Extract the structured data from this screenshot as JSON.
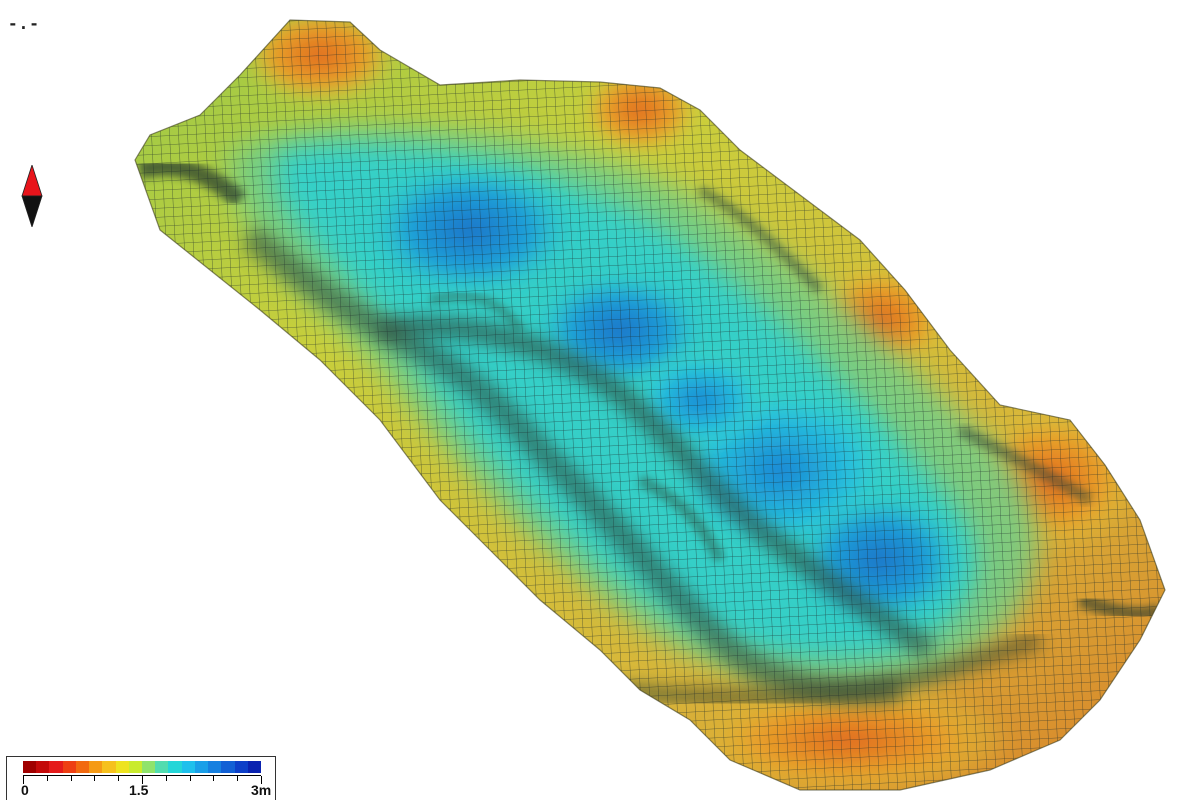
{
  "view": {
    "label": "-.-"
  },
  "compass": {
    "north_color": "#e8141b",
    "south_color": "#111111"
  },
  "legend": {
    "ticks": [
      {
        "value": 0,
        "label": "0"
      },
      {
        "value": 1.5,
        "label": "1.5"
      },
      {
        "value": 3,
        "label": "3m"
      }
    ],
    "range": [
      0,
      3
    ],
    "color_stops": [
      "#a00000",
      "#c40a0a",
      "#e51b1b",
      "#ee3f13",
      "#f26a10",
      "#f59a15",
      "#f6c11d",
      "#eee31f",
      "#c9eb2e",
      "#8fe36b",
      "#52dcaf",
      "#24d6d8",
      "#1fc0ec",
      "#1a9fe8",
      "#1680e0",
      "#1260d5",
      "#0d3fc8",
      "#0a22b0"
    ]
  },
  "surface": {
    "colors": {
      "low": "#2dd9c9",
      "deep": "#1a78cc",
      "mid": "#c8d43a",
      "high": "#e07a22",
      "shadow": "#2f4a3a",
      "grid": "#1c2a2a"
    }
  }
}
